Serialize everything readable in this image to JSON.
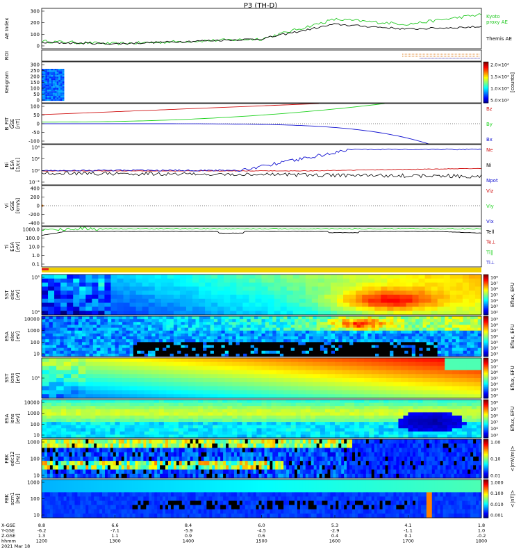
{
  "title": "P3 (TH-D)",
  "colors": {
    "red": "#d01010",
    "green": "#1ed21e",
    "blue": "#1010d0",
    "black": "#000000",
    "ae_green": "#22c822",
    "roi_orange": "#e08020",
    "roi_purple": "#4030a0"
  },
  "panels": {
    "ae": {
      "ylabel": "AE Index",
      "yticks": [
        "300",
        "200",
        "100",
        "0"
      ],
      "legend": [
        "Kyoto",
        "proxy AE",
        "Themis AE"
      ]
    },
    "roi": {
      "ylabel": "ROI"
    },
    "keogram": {
      "ylabel": "Keogram",
      "yticks": [
        "300",
        "250",
        "200",
        "150",
        "100",
        "50",
        "0"
      ],
      "cbar_ticks": [
        "2.0×10⁴",
        "1.5×10⁴",
        "1.0×10⁴",
        "5.0×10³"
      ],
      "cbar_label": "[counts]"
    },
    "bfield": {
      "ylabel": [
        "B_FIT",
        "GSE",
        "[nT]"
      ],
      "yticks": [
        "100",
        "50",
        "0",
        "-50",
        "-100"
      ],
      "legend": [
        "Bz",
        "By",
        "Bx"
      ]
    },
    "density": {
      "ylabel": [
        "Ni",
        "ESA",
        "[1/cc]"
      ],
      "yticks": [
        "10⁴",
        "10²",
        "10⁰",
        "10⁻²"
      ],
      "legend": [
        "Ne",
        "Ni",
        "Npot"
      ]
    },
    "velocity": {
      "ylabel": [
        "Vi",
        "GSE",
        "[km/s]"
      ],
      "yticks": [
        "400",
        "200",
        "0",
        "-200",
        "-400"
      ],
      "legend": [
        "Viz",
        "Viy",
        "Vix"
      ]
    },
    "temp": {
      "ylabel": [
        "Ti",
        "ESA",
        "[eV]"
      ],
      "yticks": [
        "1000.0",
        "100.0",
        "10.0",
        "1.0",
        "0.1"
      ],
      "legend": [
        "Tell",
        "Te⊥",
        "Ti‖",
        "Ti⊥"
      ]
    },
    "sst_e": {
      "ylabel": [
        "SST",
        "elec",
        "[eV]"
      ],
      "yticks": [
        "10⁵",
        "10⁴"
      ],
      "cbar_label": "Eflux, EFU",
      "cbar_ticks": [
        "10⁸",
        "10⁷",
        "10⁶",
        "10⁵",
        "10⁴",
        "10³",
        "10²"
      ]
    },
    "esa_e": {
      "ylabel": [
        "ESA",
        "elec",
        "[eV]"
      ],
      "yticks": [
        "10000",
        "1000",
        "100",
        "10"
      ],
      "cbar_label": "Eflux, EFU",
      "cbar_ticks": [
        "10⁹",
        "10⁸",
        "10⁷",
        "10⁶",
        "10⁵",
        "10⁴",
        "10³"
      ]
    },
    "sst_i": {
      "ylabel": [
        "SST",
        "ions",
        "[eV]"
      ],
      "yticks": [
        "10⁵"
      ],
      "cbar_label": "Eflux, EFU",
      "cbar_ticks": [
        "10⁸",
        "10⁷",
        "10⁶",
        "10⁵",
        "10⁴",
        "10³",
        "10²"
      ]
    },
    "esa_i": {
      "ylabel": [
        "ESA",
        "ions",
        "[eV]"
      ],
      "yticks": [
        "10000",
        "1000",
        "100",
        "10"
      ],
      "cbar_label": "Eflux, EFU",
      "cbar_ticks": [
        "10⁸",
        "10⁷",
        "10⁶",
        "10⁵",
        "10⁴",
        "10³"
      ]
    },
    "fbk_e": {
      "ylabel": [
        "FBK",
        "edc12",
        "[Hz]"
      ],
      "yticks": [
        "1000",
        "100",
        "10"
      ],
      "cbar_label": "<|mV/m|>",
      "cbar_ticks": [
        "1.00",
        "0.10",
        "0.01"
      ]
    },
    "fbk_b": {
      "ylabel": [
        "FBK",
        "scm1",
        "[Hz]"
      ],
      "yticks": [
        "1000",
        "100",
        "10"
      ],
      "cbar_label": "<|nT|>",
      "cbar_ticks": [
        "1.000",
        "0.100",
        "0.010",
        "0.001"
      ]
    }
  },
  "xaxis": {
    "row_labels": [
      "X-GSE",
      "Y-GSE",
      "Z-GSE",
      "hhmm",
      "2021 Mar 18"
    ],
    "columns": [
      {
        "x": "8.8",
        "y": "-6.2",
        "z": "1.3",
        "t": "1200"
      },
      {
        "x": "6.6",
        "y": "-7.1",
        "z": "1.1",
        "t": "1300"
      },
      {
        "x": "8.4",
        "y": "-5.9",
        "z": "0.9",
        "t": "1400"
      },
      {
        "x": "6.0",
        "y": "-4.5",
        "z": "0.6",
        "t": "1500"
      },
      {
        "x": "5.3",
        "y": "-2.9",
        "z": "0.4",
        "t": "1600"
      },
      {
        "x": "4.1",
        "y": "-1.1",
        "z": "0.1",
        "t": "1700"
      },
      {
        "x": "1.8",
        "y": "1.0",
        "z": "-0.2",
        "t": "1800"
      }
    ]
  },
  "chart_data": {
    "type": "line",
    "title": "P3 (TH-D)",
    "x": [
      "1200",
      "1300",
      "1400",
      "1500",
      "1600",
      "1700",
      "1800"
    ],
    "xlabel": "hhmm",
    "series": [
      {
        "name": "Kyoto proxy AE",
        "values": [
          60,
          40,
          60,
          80,
          240,
          200,
          280
        ]
      },
      {
        "name": "Themis AE",
        "values": [
          50,
          40,
          60,
          80,
          200,
          160,
          180
        ]
      },
      {
        "name": "Bz",
        "values": [
          40,
          60,
          80,
          100,
          100,
          100,
          100
        ]
      },
      {
        "name": "By",
        "values": [
          5,
          10,
          20,
          40,
          100,
          100,
          100
        ]
      },
      {
        "name": "Bx",
        "values": [
          0,
          0,
          -2,
          -5,
          -20,
          -100,
          -100
        ]
      }
    ]
  }
}
